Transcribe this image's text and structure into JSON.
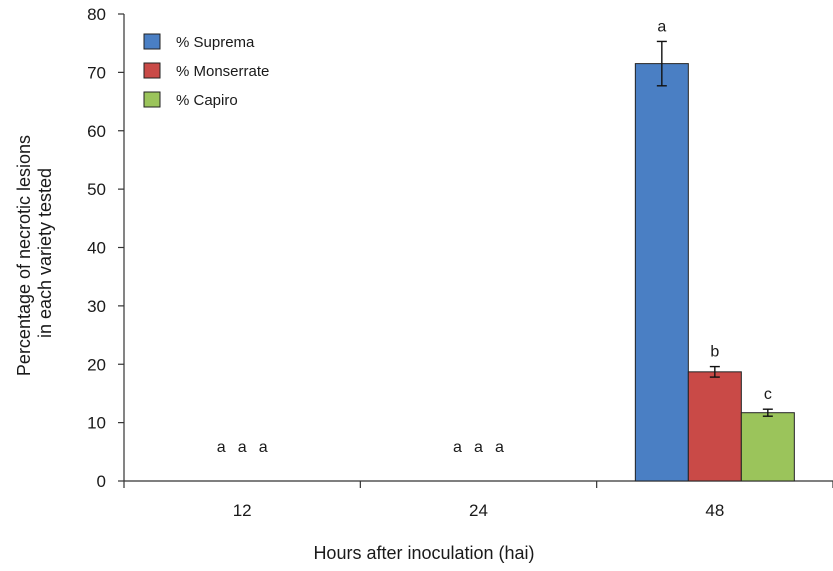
{
  "chart_data": {
    "type": "bar",
    "categories": [
      "12",
      "24",
      "48"
    ],
    "series": [
      {
        "name": "% Suprema",
        "color": "#4a7fc4",
        "values": [
          0,
          0,
          71.5
        ],
        "errors": [
          0,
          0,
          3.8
        ],
        "letters": [
          "a",
          "a",
          "a"
        ]
      },
      {
        "name": "% Monserrate",
        "color": "#c94a47",
        "values": [
          0,
          0,
          18.7
        ],
        "errors": [
          0,
          0,
          0.9
        ],
        "letters": [
          "a",
          "a",
          "b"
        ]
      },
      {
        "name": "% Capiro",
        "color": "#9bc45b",
        "values": [
          0,
          0,
          11.7
        ],
        "errors": [
          0,
          0,
          0.6
        ],
        "letters": [
          "a",
          "a",
          "c"
        ]
      }
    ],
    "xlabel": "Hours after inoculation (hai)",
    "ylabel_lines": [
      "Percentage of necrotic lesions",
      "in each variety tested"
    ],
    "ylim": [
      0,
      80
    ],
    "yticks": [
      0,
      10,
      20,
      30,
      40,
      50,
      60,
      70,
      80
    ],
    "grid": false,
    "legend": "top-left"
  }
}
